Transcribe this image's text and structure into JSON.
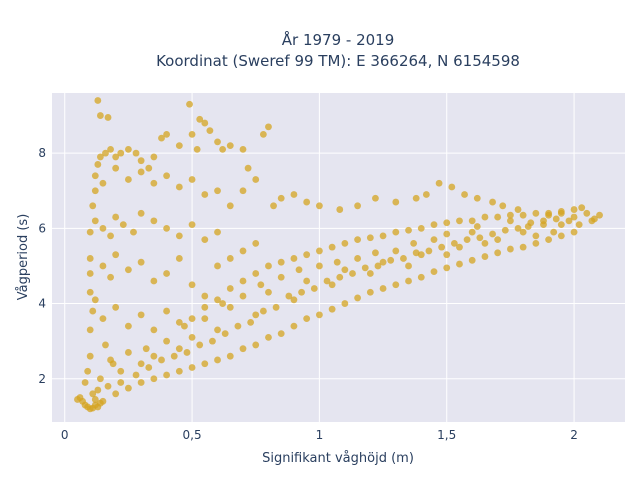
{
  "chart_data": {
    "type": "scatter",
    "title_lines": [
      "År 1979 - 2019",
      "Koordinat (Sweref 99 TM): E 366264, N 6154598"
    ],
    "xlabel": "Signifikant våghöjd (m)",
    "ylabel": "Vågperiod (s)",
    "xlim": [
      -0.05,
      2.2
    ],
    "ylim": [
      0.85,
      9.6
    ],
    "x_ticks": [
      0,
      0.5,
      1,
      1.5,
      2
    ],
    "x_tick_labels": [
      "0",
      "0,5",
      "1",
      "1,5",
      "2"
    ],
    "y_ticks": [
      2,
      4,
      6,
      8
    ],
    "y_tick_labels": [
      "2",
      "4",
      "6",
      "8"
    ],
    "grid": true,
    "legend": "none",
    "marker_color": "#d4a421",
    "plot_background": "#e5e5f0",
    "series": [
      {
        "points": [
          [
            0.05,
            1.45
          ],
          [
            0.06,
            1.5
          ],
          [
            0.07,
            1.4
          ],
          [
            0.08,
            1.3
          ],
          [
            0.09,
            1.25
          ],
          [
            0.1,
            1.2
          ],
          [
            0.11,
            1.22
          ],
          [
            0.12,
            1.3
          ],
          [
            0.13,
            1.25
          ],
          [
            0.14,
            1.35
          ],
          [
            0.15,
            1.4
          ],
          [
            0.12,
            1.45
          ],
          [
            0.08,
            1.9
          ],
          [
            0.09,
            2.2
          ],
          [
            0.1,
            2.6
          ],
          [
            0.1,
            3.3
          ],
          [
            0.11,
            3.8
          ],
          [
            0.1,
            4.3
          ],
          [
            0.1,
            5.2
          ],
          [
            0.1,
            5.9
          ],
          [
            0.11,
            6.6
          ],
          [
            0.12,
            7.0
          ],
          [
            0.12,
            7.4
          ],
          [
            0.13,
            7.7
          ],
          [
            0.14,
            7.9
          ],
          [
            0.16,
            8.0
          ],
          [
            0.18,
            8.1
          ],
          [
            0.2,
            7.9
          ],
          [
            0.22,
            8.0
          ],
          [
            0.25,
            8.1
          ],
          [
            0.28,
            8.0
          ],
          [
            0.3,
            7.8
          ],
          [
            0.33,
            7.6
          ],
          [
            0.35,
            7.9
          ],
          [
            0.38,
            8.4
          ],
          [
            0.4,
            8.5
          ],
          [
            0.45,
            8.2
          ],
          [
            0.5,
            8.5
          ],
          [
            0.52,
            8.1
          ],
          [
            0.55,
            8.8
          ],
          [
            0.57,
            8.6
          ],
          [
            0.6,
            8.3
          ],
          [
            0.62,
            8.1
          ],
          [
            0.65,
            8.2
          ],
          [
            0.7,
            8.1
          ],
          [
            0.72,
            7.6
          ],
          [
            0.75,
            7.3
          ],
          [
            0.78,
            8.5
          ],
          [
            0.8,
            8.7
          ],
          [
            0.7,
            7.0
          ],
          [
            0.65,
            6.6
          ],
          [
            0.6,
            7.0
          ],
          [
            0.55,
            6.9
          ],
          [
            0.5,
            7.3
          ],
          [
            0.45,
            7.1
          ],
          [
            0.4,
            7.4
          ],
          [
            0.35,
            7.2
          ],
          [
            0.3,
            7.5
          ],
          [
            0.25,
            7.3
          ],
          [
            0.2,
            7.6
          ],
          [
            0.15,
            7.2
          ],
          [
            0.13,
            9.4
          ],
          [
            0.14,
            9.0
          ],
          [
            0.17,
            8.95
          ],
          [
            0.49,
            9.3
          ],
          [
            0.53,
            8.9
          ],
          [
            0.12,
            6.2
          ],
          [
            0.15,
            6.0
          ],
          [
            0.18,
            5.8
          ],
          [
            0.2,
            6.3
          ],
          [
            0.23,
            6.1
          ],
          [
            0.27,
            5.9
          ],
          [
            0.3,
            6.4
          ],
          [
            0.35,
            6.2
          ],
          [
            0.4,
            6.0
          ],
          [
            0.45,
            5.8
          ],
          [
            0.5,
            6.1
          ],
          [
            0.55,
            5.7
          ],
          [
            0.6,
            5.9
          ],
          [
            0.15,
            5.0
          ],
          [
            0.18,
            4.7
          ],
          [
            0.2,
            5.3
          ],
          [
            0.25,
            4.9
          ],
          [
            0.3,
            5.1
          ],
          [
            0.35,
            4.6
          ],
          [
            0.4,
            4.8
          ],
          [
            0.45,
            5.2
          ],
          [
            0.5,
            4.5
          ],
          [
            0.55,
            4.2
          ],
          [
            0.1,
            4.8
          ],
          [
            0.12,
            4.1
          ],
          [
            0.15,
            3.6
          ],
          [
            0.2,
            3.9
          ],
          [
            0.25,
            3.4
          ],
          [
            0.3,
            3.7
          ],
          [
            0.35,
            3.3
          ],
          [
            0.4,
            3.8
          ],
          [
            0.45,
            3.5
          ],
          [
            0.5,
            3.6
          ],
          [
            0.55,
            3.9
          ],
          [
            0.6,
            4.1
          ],
          [
            0.65,
            4.4
          ],
          [
            0.7,
            4.6
          ],
          [
            0.75,
            4.8
          ],
          [
            0.8,
            5.0
          ],
          [
            0.85,
            5.1
          ],
          [
            0.9,
            5.2
          ],
          [
            0.95,
            5.3
          ],
          [
            1.0,
            5.4
          ],
          [
            1.05,
            5.5
          ],
          [
            1.1,
            5.6
          ],
          [
            1.15,
            5.7
          ],
          [
            1.2,
            5.75
          ],
          [
            1.25,
            5.8
          ],
          [
            1.3,
            5.9
          ],
          [
            1.35,
            5.95
          ],
          [
            1.4,
            6.0
          ],
          [
            1.45,
            6.1
          ],
          [
            1.5,
            6.15
          ],
          [
            1.55,
            6.2
          ],
          [
            1.6,
            6.2
          ],
          [
            1.65,
            6.3
          ],
          [
            1.7,
            6.3
          ],
          [
            1.75,
            6.35
          ],
          [
            1.8,
            6.35
          ],
          [
            1.85,
            6.4
          ],
          [
            1.9,
            6.4
          ],
          [
            1.95,
            6.45
          ],
          [
            2.0,
            6.5
          ],
          [
            2.03,
            6.55
          ],
          [
            2.05,
            6.4
          ],
          [
            2.07,
            6.2
          ],
          [
            2.1,
            6.35
          ],
          [
            1.98,
            6.2
          ],
          [
            1.93,
            6.25
          ],
          [
            1.88,
            6.1
          ],
          [
            1.82,
            6.05
          ],
          [
            1.78,
            6.5
          ],
          [
            1.72,
            6.6
          ],
          [
            1.68,
            6.7
          ],
          [
            1.62,
            6.8
          ],
          [
            1.57,
            6.9
          ],
          [
            1.52,
            7.1
          ],
          [
            1.47,
            7.2
          ],
          [
            1.42,
            6.9
          ],
          [
            1.38,
            6.8
          ],
          [
            1.3,
            6.7
          ],
          [
            1.22,
            6.8
          ],
          [
            1.15,
            6.6
          ],
          [
            1.08,
            6.5
          ],
          [
            1.0,
            6.6
          ],
          [
            0.95,
            6.7
          ],
          [
            0.9,
            6.9
          ],
          [
            0.85,
            6.8
          ],
          [
            0.82,
            6.6
          ],
          [
            0.75,
            5.6
          ],
          [
            0.7,
            5.4
          ],
          [
            0.65,
            5.2
          ],
          [
            0.6,
            5.0
          ],
          [
            0.2,
            1.6
          ],
          [
            0.25,
            1.75
          ],
          [
            0.3,
            1.9
          ],
          [
            0.35,
            2.0
          ],
          [
            0.4,
            2.1
          ],
          [
            0.45,
            2.2
          ],
          [
            0.5,
            2.3
          ],
          [
            0.55,
            2.4
          ],
          [
            0.6,
            2.5
          ],
          [
            0.65,
            2.6
          ],
          [
            0.7,
            2.8
          ],
          [
            0.75,
            2.9
          ],
          [
            0.8,
            3.1
          ],
          [
            0.85,
            3.2
          ],
          [
            0.9,
            3.4
          ],
          [
            0.95,
            3.6
          ],
          [
            1.0,
            3.7
          ],
          [
            1.05,
            3.85
          ],
          [
            1.1,
            4.0
          ],
          [
            1.15,
            4.15
          ],
          [
            1.2,
            4.3
          ],
          [
            1.25,
            4.4
          ],
          [
            1.3,
            4.5
          ],
          [
            1.35,
            4.6
          ],
          [
            1.4,
            4.7
          ],
          [
            1.45,
            4.85
          ],
          [
            1.5,
            4.95
          ],
          [
            1.55,
            5.05
          ],
          [
            1.6,
            5.15
          ],
          [
            1.65,
            5.25
          ],
          [
            1.7,
            5.35
          ],
          [
            1.75,
            5.45
          ],
          [
            1.8,
            5.5
          ],
          [
            1.85,
            5.6
          ],
          [
            1.9,
            5.7
          ],
          [
            1.95,
            5.8
          ],
          [
            2.0,
            5.9
          ],
          [
            2.02,
            6.1
          ],
          [
            2.08,
            6.25
          ],
          [
            1.92,
            5.9
          ],
          [
            1.85,
            5.8
          ],
          [
            1.7,
            5.7
          ],
          [
            1.55,
            5.5
          ],
          [
            1.4,
            5.3
          ],
          [
            1.25,
            5.1
          ],
          [
            1.1,
            4.9
          ],
          [
            0.95,
            4.6
          ],
          [
            0.8,
            4.3
          ],
          [
            0.65,
            3.9
          ],
          [
            0.5,
            3.1
          ],
          [
            0.35,
            2.6
          ],
          [
            0.22,
            2.2
          ],
          [
            0.18,
            2.5
          ],
          [
            0.16,
            2.9
          ],
          [
            0.3,
            2.4
          ],
          [
            0.45,
            2.8
          ],
          [
            0.6,
            3.3
          ],
          [
            0.75,
            3.7
          ],
          [
            0.9,
            4.1
          ],
          [
            1.05,
            4.5
          ],
          [
            1.2,
            4.8
          ],
          [
            1.35,
            5.0
          ],
          [
            1.5,
            5.3
          ],
          [
            1.65,
            5.6
          ],
          [
            1.8,
            5.9
          ],
          [
            1.95,
            6.1
          ],
          [
            1.6,
            5.9
          ],
          [
            1.45,
            5.7
          ],
          [
            1.3,
            5.4
          ],
          [
            1.15,
            5.2
          ],
          [
            1.0,
            5.0
          ],
          [
            0.85,
            4.7
          ],
          [
            0.7,
            4.2
          ],
          [
            0.55,
            3.6
          ],
          [
            0.4,
            3.0
          ],
          [
            0.25,
            2.7
          ],
          [
            0.14,
            2.0
          ],
          [
            0.17,
            1.8
          ],
          [
            0.22,
            1.9
          ],
          [
            0.28,
            2.1
          ],
          [
            0.33,
            2.3
          ],
          [
            0.38,
            2.5
          ],
          [
            0.43,
            2.6
          ],
          [
            0.48,
            2.7
          ],
          [
            0.53,
            2.9
          ],
          [
            0.58,
            3.0
          ],
          [
            0.63,
            3.2
          ],
          [
            0.68,
            3.4
          ],
          [
            0.73,
            3.5
          ],
          [
            0.78,
            3.8
          ],
          [
            0.83,
            3.9
          ],
          [
            0.88,
            4.2
          ],
          [
            0.93,
            4.3
          ],
          [
            0.98,
            4.4
          ],
          [
            1.03,
            4.6
          ],
          [
            1.08,
            4.7
          ],
          [
            1.13,
            4.8
          ],
          [
            1.18,
            4.95
          ],
          [
            1.23,
            5.0
          ],
          [
            1.28,
            5.15
          ],
          [
            1.33,
            5.2
          ],
          [
            1.38,
            5.35
          ],
          [
            1.43,
            5.4
          ],
          [
            1.48,
            5.5
          ],
          [
            1.53,
            5.6
          ],
          [
            1.58,
            5.7
          ],
          [
            1.63,
            5.75
          ],
          [
            1.68,
            5.85
          ],
          [
            1.73,
            5.95
          ],
          [
            1.78,
            6.0
          ],
          [
            1.83,
            6.15
          ],
          [
            1.88,
            6.2
          ],
          [
            1.9,
            6.35
          ],
          [
            1.95,
            6.4
          ],
          [
            2.0,
            6.3
          ],
          [
            1.75,
            6.2
          ],
          [
            1.62,
            6.05
          ],
          [
            1.5,
            5.85
          ],
          [
            1.37,
            5.6
          ],
          [
            1.22,
            5.35
          ],
          [
            1.07,
            5.1
          ],
          [
            0.92,
            4.9
          ],
          [
            0.77,
            4.5
          ],
          [
            0.62,
            4.0
          ],
          [
            0.47,
            3.4
          ],
          [
            0.32,
            2.8
          ],
          [
            0.19,
            2.4
          ],
          [
            0.13,
            1.7
          ],
          [
            0.11,
            1.6
          ]
        ]
      }
    ]
  }
}
